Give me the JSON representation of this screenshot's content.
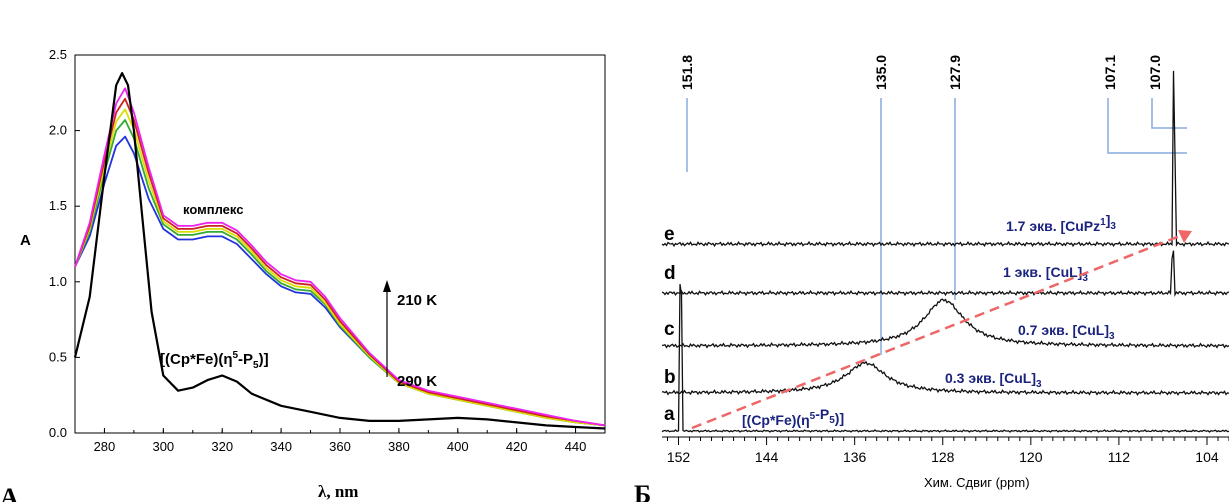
{
  "chart_data": [
    {
      "type": "line",
      "panel_label": "А",
      "xlabel": "λ, nm",
      "ylabel": "A",
      "xlim": [
        270,
        450
      ],
      "ylim": [
        0,
        2.5
      ],
      "x_ticks": [
        "280",
        "300",
        "320",
        "340",
        "360",
        "380",
        "400",
        "420",
        "440"
      ],
      "y_ticks": [
        "0.0",
        "0.5",
        "1.0",
        "1.5",
        "2.0",
        "2.5"
      ],
      "annotations": {
        "complex": "комплекс",
        "free_ligand_pre": "[(Cp*Fe)(η",
        "free_ligand_sup": "5",
        "free_ligand_mid": "-P",
        "free_ligand_sub": "5",
        "free_ligand_post": ")]",
        "t_high": "210 K",
        "t_low": "290 K"
      },
      "series": [
        {
          "color": "#000000",
          "x": [
            270,
            275,
            280,
            284,
            286,
            288,
            290,
            293,
            296,
            300,
            305,
            310,
            315,
            320,
            325,
            330,
            340,
            350,
            360,
            370,
            380,
            390,
            400,
            410,
            420,
            430,
            440,
            450
          ],
          "y": [
            0.5,
            0.9,
            1.7,
            2.3,
            2.38,
            2.3,
            2.0,
            1.4,
            0.8,
            0.38,
            0.28,
            0.3,
            0.35,
            0.38,
            0.34,
            0.26,
            0.18,
            0.14,
            0.1,
            0.08,
            0.08,
            0.09,
            0.1,
            0.09,
            0.07,
            0.05,
            0.04,
            0.03
          ]
        },
        {
          "color": "#2233dd",
          "x": [
            270,
            275,
            280,
            284,
            287,
            290,
            295,
            300,
            305,
            310,
            315,
            320,
            325,
            330,
            335,
            340,
            345,
            350,
            355,
            360,
            370,
            380,
            390,
            400,
            410,
            420,
            430,
            440,
            450
          ],
          "y": [
            1.1,
            1.3,
            1.65,
            1.9,
            1.96,
            1.85,
            1.55,
            1.35,
            1.28,
            1.28,
            1.3,
            1.3,
            1.25,
            1.15,
            1.05,
            0.97,
            0.93,
            0.92,
            0.83,
            0.7,
            0.5,
            0.33,
            0.26,
            0.22,
            0.18,
            0.14,
            0.1,
            0.07,
            0.05
          ]
        },
        {
          "color": "#33aa33",
          "x": [
            270,
            275,
            280,
            284,
            287,
            290,
            295,
            300,
            305,
            310,
            315,
            320,
            325,
            330,
            335,
            340,
            345,
            350,
            355,
            360,
            370,
            380,
            390,
            400,
            410,
            420,
            430,
            440,
            450
          ],
          "y": [
            1.1,
            1.33,
            1.72,
            2.0,
            2.07,
            1.95,
            1.62,
            1.38,
            1.31,
            1.31,
            1.33,
            1.33,
            1.28,
            1.18,
            1.07,
            0.99,
            0.95,
            0.94,
            0.85,
            0.71,
            0.5,
            0.33,
            0.26,
            0.22,
            0.18,
            0.14,
            0.1,
            0.07,
            0.05
          ]
        },
        {
          "color": "#dddd00",
          "x": [
            270,
            275,
            280,
            284,
            287,
            290,
            295,
            300,
            305,
            310,
            315,
            320,
            325,
            330,
            335,
            340,
            345,
            350,
            355,
            360,
            370,
            380,
            390,
            400,
            410,
            420,
            430,
            440,
            450
          ],
          "y": [
            1.1,
            1.35,
            1.76,
            2.06,
            2.14,
            2.01,
            1.67,
            1.4,
            1.33,
            1.33,
            1.35,
            1.35,
            1.3,
            1.2,
            1.09,
            1.01,
            0.97,
            0.96,
            0.86,
            0.72,
            0.51,
            0.33,
            0.26,
            0.22,
            0.18,
            0.14,
            0.1,
            0.07,
            0.05
          ]
        },
        {
          "color": "#cc2222",
          "x": [
            270,
            275,
            280,
            284,
            287,
            290,
            295,
            300,
            305,
            310,
            315,
            320,
            325,
            330,
            335,
            340,
            345,
            350,
            355,
            360,
            370,
            380,
            390,
            400,
            410,
            420,
            430,
            440,
            450
          ],
          "y": [
            1.1,
            1.37,
            1.8,
            2.12,
            2.21,
            2.07,
            1.72,
            1.42,
            1.35,
            1.35,
            1.37,
            1.37,
            1.32,
            1.22,
            1.11,
            1.03,
            0.99,
            0.98,
            0.88,
            0.74,
            0.52,
            0.34,
            0.27,
            0.23,
            0.19,
            0.15,
            0.11,
            0.08,
            0.05
          ]
        },
        {
          "color": "#ee22ee",
          "x": [
            270,
            275,
            280,
            284,
            287,
            290,
            295,
            300,
            305,
            310,
            315,
            320,
            325,
            330,
            335,
            340,
            345,
            350,
            355,
            360,
            370,
            380,
            390,
            400,
            410,
            420,
            430,
            440,
            450
          ],
          "y": [
            1.1,
            1.39,
            1.84,
            2.18,
            2.28,
            2.12,
            1.76,
            1.44,
            1.37,
            1.37,
            1.39,
            1.39,
            1.34,
            1.24,
            1.13,
            1.05,
            1.01,
            1.0,
            0.9,
            0.76,
            0.53,
            0.35,
            0.28,
            0.24,
            0.2,
            0.16,
            0.12,
            0.08,
            0.05
          ]
        }
      ]
    },
    {
      "type": "line",
      "panel_label": "Б",
      "xlabel": "Хим. Сдвиг (ppm)",
      "xlim": [
        153.5,
        102
      ],
      "x_ticks": [
        "152",
        "144",
        "136",
        "128",
        "120",
        "112",
        "104"
      ],
      "peak_labels": [
        "151.8",
        "135.0",
        "127.9",
        "107.1",
        "107.0"
      ],
      "traces": [
        {
          "letter": "a",
          "pre": "[(Cp*Fe)(η",
          "sup": "5",
          "mid": "-P",
          "sub": "5",
          "post": ")]",
          "peak": 151.8
        },
        {
          "letter": "b",
          "pre": "0.3 экв. [CuL]",
          "sub": "3",
          "peak": 135.0
        },
        {
          "letter": "c",
          "pre": "0.7 экв. [CuL]",
          "sub": "3",
          "peak": 127.9
        },
        {
          "letter": "d",
          "pre": "1 экв. [CuL]",
          "sub": "3",
          "peak": 107.1
        },
        {
          "letter": "e",
          "pre": "1.7 экв. [CuPz",
          "sup": "1",
          "post": "]",
          "sub": "3",
          "peak": 107.0
        }
      ]
    }
  ]
}
